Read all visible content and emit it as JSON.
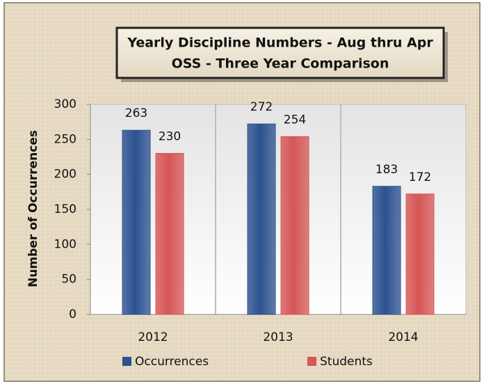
{
  "chart_data": {
    "type": "bar",
    "title": "Yearly Discipline Numbers - Aug thru Apr",
    "subtitle": "OSS - Three Year Comparison",
    "y_label": "Number of Occurrences",
    "categories": [
      "2012",
      "2013",
      "2014"
    ],
    "series": [
      {
        "name": "Occurrences",
        "color": "#2c5190",
        "values": [
          263,
          272,
          183
        ]
      },
      {
        "name": "Students",
        "color": "#d65656",
        "values": [
          230,
          254,
          172
        ]
      }
    ],
    "ylim": [
      0,
      300
    ],
    "yticks": [
      0,
      50,
      100,
      150,
      200,
      250,
      300
    ],
    "grid": false,
    "legend": "bottom"
  }
}
